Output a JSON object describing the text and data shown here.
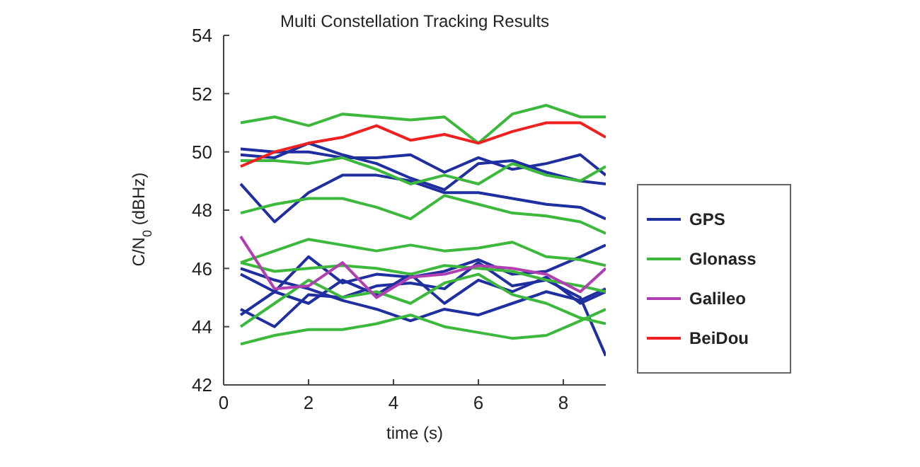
{
  "chart_data": {
    "type": "line",
    "title": "Multi Constellation Tracking Results",
    "xlabel": "time (s)",
    "ylabel": "C/N$_{0}$ (dBHz)",
    "x": [
      0.4,
      1.2,
      2.0,
      2.8,
      3.6,
      4.4,
      5.2,
      6.0,
      6.8,
      7.6,
      8.4,
      9.0
    ],
    "xlim": [
      0,
      9
    ],
    "xticks": [
      0,
      2,
      4,
      6,
      8
    ],
    "ylim": [
      42,
      54
    ],
    "yticks": [
      42,
      44,
      46,
      48,
      50,
      52,
      54
    ],
    "grid": false,
    "legend": "right",
    "marker": "none",
    "line_style": "solid",
    "series": [
      {
        "name": "GPS",
        "color": "#1f2fa0",
        "values": [
          50.1,
          50.0,
          50.0,
          49.8,
          49.8,
          49.9,
          49.3,
          49.8,
          49.4,
          49.6,
          49.9,
          49.2
        ]
      },
      {
        "color": "#1f2fa0",
        "values": [
          49.9,
          49.8,
          50.3,
          49.9,
          49.6,
          49.1,
          48.7,
          49.6,
          49.7,
          49.3,
          49.0,
          48.9
        ]
      },
      {
        "color": "#1f2fa0",
        "values": [
          48.9,
          47.6,
          48.6,
          49.2,
          49.2,
          49.0,
          48.6,
          48.6,
          48.4,
          48.2,
          48.1,
          47.7
        ]
      },
      {
        "color": "#1f2fa0",
        "values": [
          46.0,
          45.6,
          45.3,
          44.9,
          44.6,
          44.2,
          44.6,
          44.4,
          44.8,
          45.2,
          44.9,
          45.3
        ]
      },
      {
        "color": "#1f2fa0",
        "values": [
          45.8,
          45.2,
          46.4,
          45.5,
          45.8,
          45.7,
          45.9,
          46.3,
          45.8,
          45.9,
          46.4,
          46.8
        ]
      },
      {
        "color": "#1f2fa0",
        "values": [
          44.6,
          44.0,
          45.1,
          45.0,
          45.4,
          45.5,
          45.3,
          46.2,
          45.4,
          45.6,
          45.0,
          43.0
        ]
      },
      {
        "color": "#1f2fa0",
        "values": [
          44.4,
          45.2,
          44.8,
          45.6,
          45.1,
          45.8,
          44.8,
          45.6,
          45.2,
          45.7,
          44.8,
          45.2
        ]
      },
      {
        "name": "Glonass",
        "color": "#3cb83c",
        "values": [
          51.0,
          51.2,
          50.9,
          51.3,
          51.2,
          51.1,
          51.2,
          50.3,
          51.3,
          51.6,
          51.2,
          51.2
        ]
      },
      {
        "color": "#3cb83c",
        "values": [
          49.7,
          49.7,
          49.6,
          49.8,
          49.4,
          48.9,
          49.2,
          48.9,
          49.6,
          49.2,
          49.0,
          49.5
        ]
      },
      {
        "color": "#3cb83c",
        "values": [
          47.9,
          48.2,
          48.4,
          48.4,
          48.1,
          47.7,
          48.5,
          48.2,
          47.9,
          47.8,
          47.6,
          47.2
        ]
      },
      {
        "color": "#3cb83c",
        "values": [
          46.2,
          46.6,
          47.0,
          46.8,
          46.6,
          46.8,
          46.6,
          46.7,
          46.9,
          46.4,
          46.3,
          46.1
        ]
      },
      {
        "color": "#3cb83c",
        "values": [
          46.2,
          45.9,
          46.0,
          46.1,
          46.0,
          45.8,
          46.1,
          46.0,
          45.9,
          45.6,
          45.4,
          45.2
        ]
      },
      {
        "color": "#3cb83c",
        "values": [
          44.0,
          44.8,
          45.6,
          45.0,
          45.2,
          44.8,
          45.5,
          45.8,
          45.1,
          44.8,
          44.3,
          44.1
        ]
      },
      {
        "color": "#3cb83c",
        "values": [
          43.4,
          43.7,
          43.9,
          43.9,
          44.1,
          44.4,
          44.0,
          43.8,
          43.6,
          43.7,
          44.2,
          44.6
        ]
      },
      {
        "name": "Galileo",
        "color": "#b040b0",
        "values": [
          47.1,
          45.3,
          45.4,
          46.2,
          45.0,
          45.7,
          45.8,
          46.1,
          46.0,
          45.8,
          45.2,
          46.0
        ]
      },
      {
        "name": "BeiDou",
        "color": "#f02020",
        "values": [
          49.5,
          50.0,
          50.3,
          50.5,
          50.9,
          50.4,
          50.6,
          50.3,
          50.7,
          51.0,
          51.0,
          50.5
        ]
      }
    ]
  }
}
